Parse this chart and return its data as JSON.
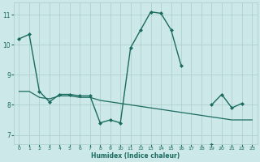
{
  "xlabel": "Humidex (Indice chaleur)",
  "bg_color": "#cce8e8",
  "grid_color": "#aacccc",
  "line_color": "#1a6b60",
  "xlim": [
    -0.5,
    23.5
  ],
  "ylim": [
    6.7,
    11.4
  ],
  "xticks": [
    0,
    1,
    2,
    3,
    4,
    5,
    6,
    7,
    8,
    9,
    10,
    11,
    12,
    13,
    14,
    15,
    16,
    17,
    18,
    19,
    20,
    21,
    22,
    23
  ],
  "yticks": [
    7,
    8,
    9,
    10,
    11
  ],
  "series_main": [
    10.2,
    10.35,
    8.45,
    8.1,
    8.35,
    8.35,
    8.3,
    8.3,
    7.4,
    7.5,
    7.4,
    9.9,
    10.5,
    11.1,
    11.05,
    10.5,
    9.3,
    null,
    null,
    8.0,
    8.35,
    7.9,
    8.05,
    null
  ],
  "series_flat": [
    8.45,
    8.45,
    8.25,
    8.2,
    8.3,
    8.3,
    8.25,
    8.25,
    8.15,
    8.1,
    8.05,
    8.0,
    7.95,
    7.9,
    7.85,
    7.8,
    7.75,
    7.7,
    7.65,
    7.6,
    7.55,
    7.5,
    7.5,
    7.5
  ],
  "series_low": [
    null,
    null,
    null,
    null,
    null,
    null,
    null,
    null,
    null,
    null,
    null,
    null,
    null,
    null,
    null,
    null,
    null,
    null,
    null,
    6.67,
    null,
    null,
    null,
    null
  ]
}
